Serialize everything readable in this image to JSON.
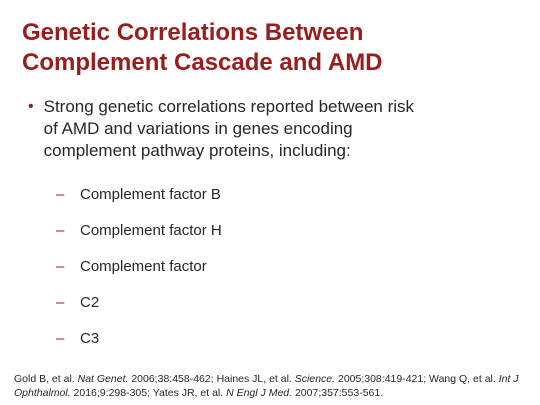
{
  "title": {
    "line1": "Genetic Correlations Between",
    "line2": "Complement Cascade and AMD"
  },
  "bullet": {
    "marker": "•",
    "line1": "Strong genetic correlations reported between risk",
    "line2": "of AMD and variations in genes encoding",
    "line3": "complement pathway proteins, including:"
  },
  "subitems": {
    "dash": "–",
    "items": [
      "Complement factor B",
      "Complement factor H",
      "Complement factor",
      "C2",
      "C3"
    ]
  },
  "references": {
    "r1_plain": "Gold B, et al. ",
    "r1_journal": "Nat Genet.",
    "r1_rest": " 2006;38:458-462; Haines JL, et al. ",
    "r2_journal": "Science.",
    "r2_rest": " 2005;308:419-421; Wang Q, et al. ",
    "r3_journal_line1": "Int J",
    "r3_journal_line2": "Ophthalmol.",
    "r3_rest": " 2016;9:298-305; Yates JR, et al. ",
    "r4_journal": "N Engl J Med.",
    "r4_rest": " 2007;357:553-561."
  }
}
